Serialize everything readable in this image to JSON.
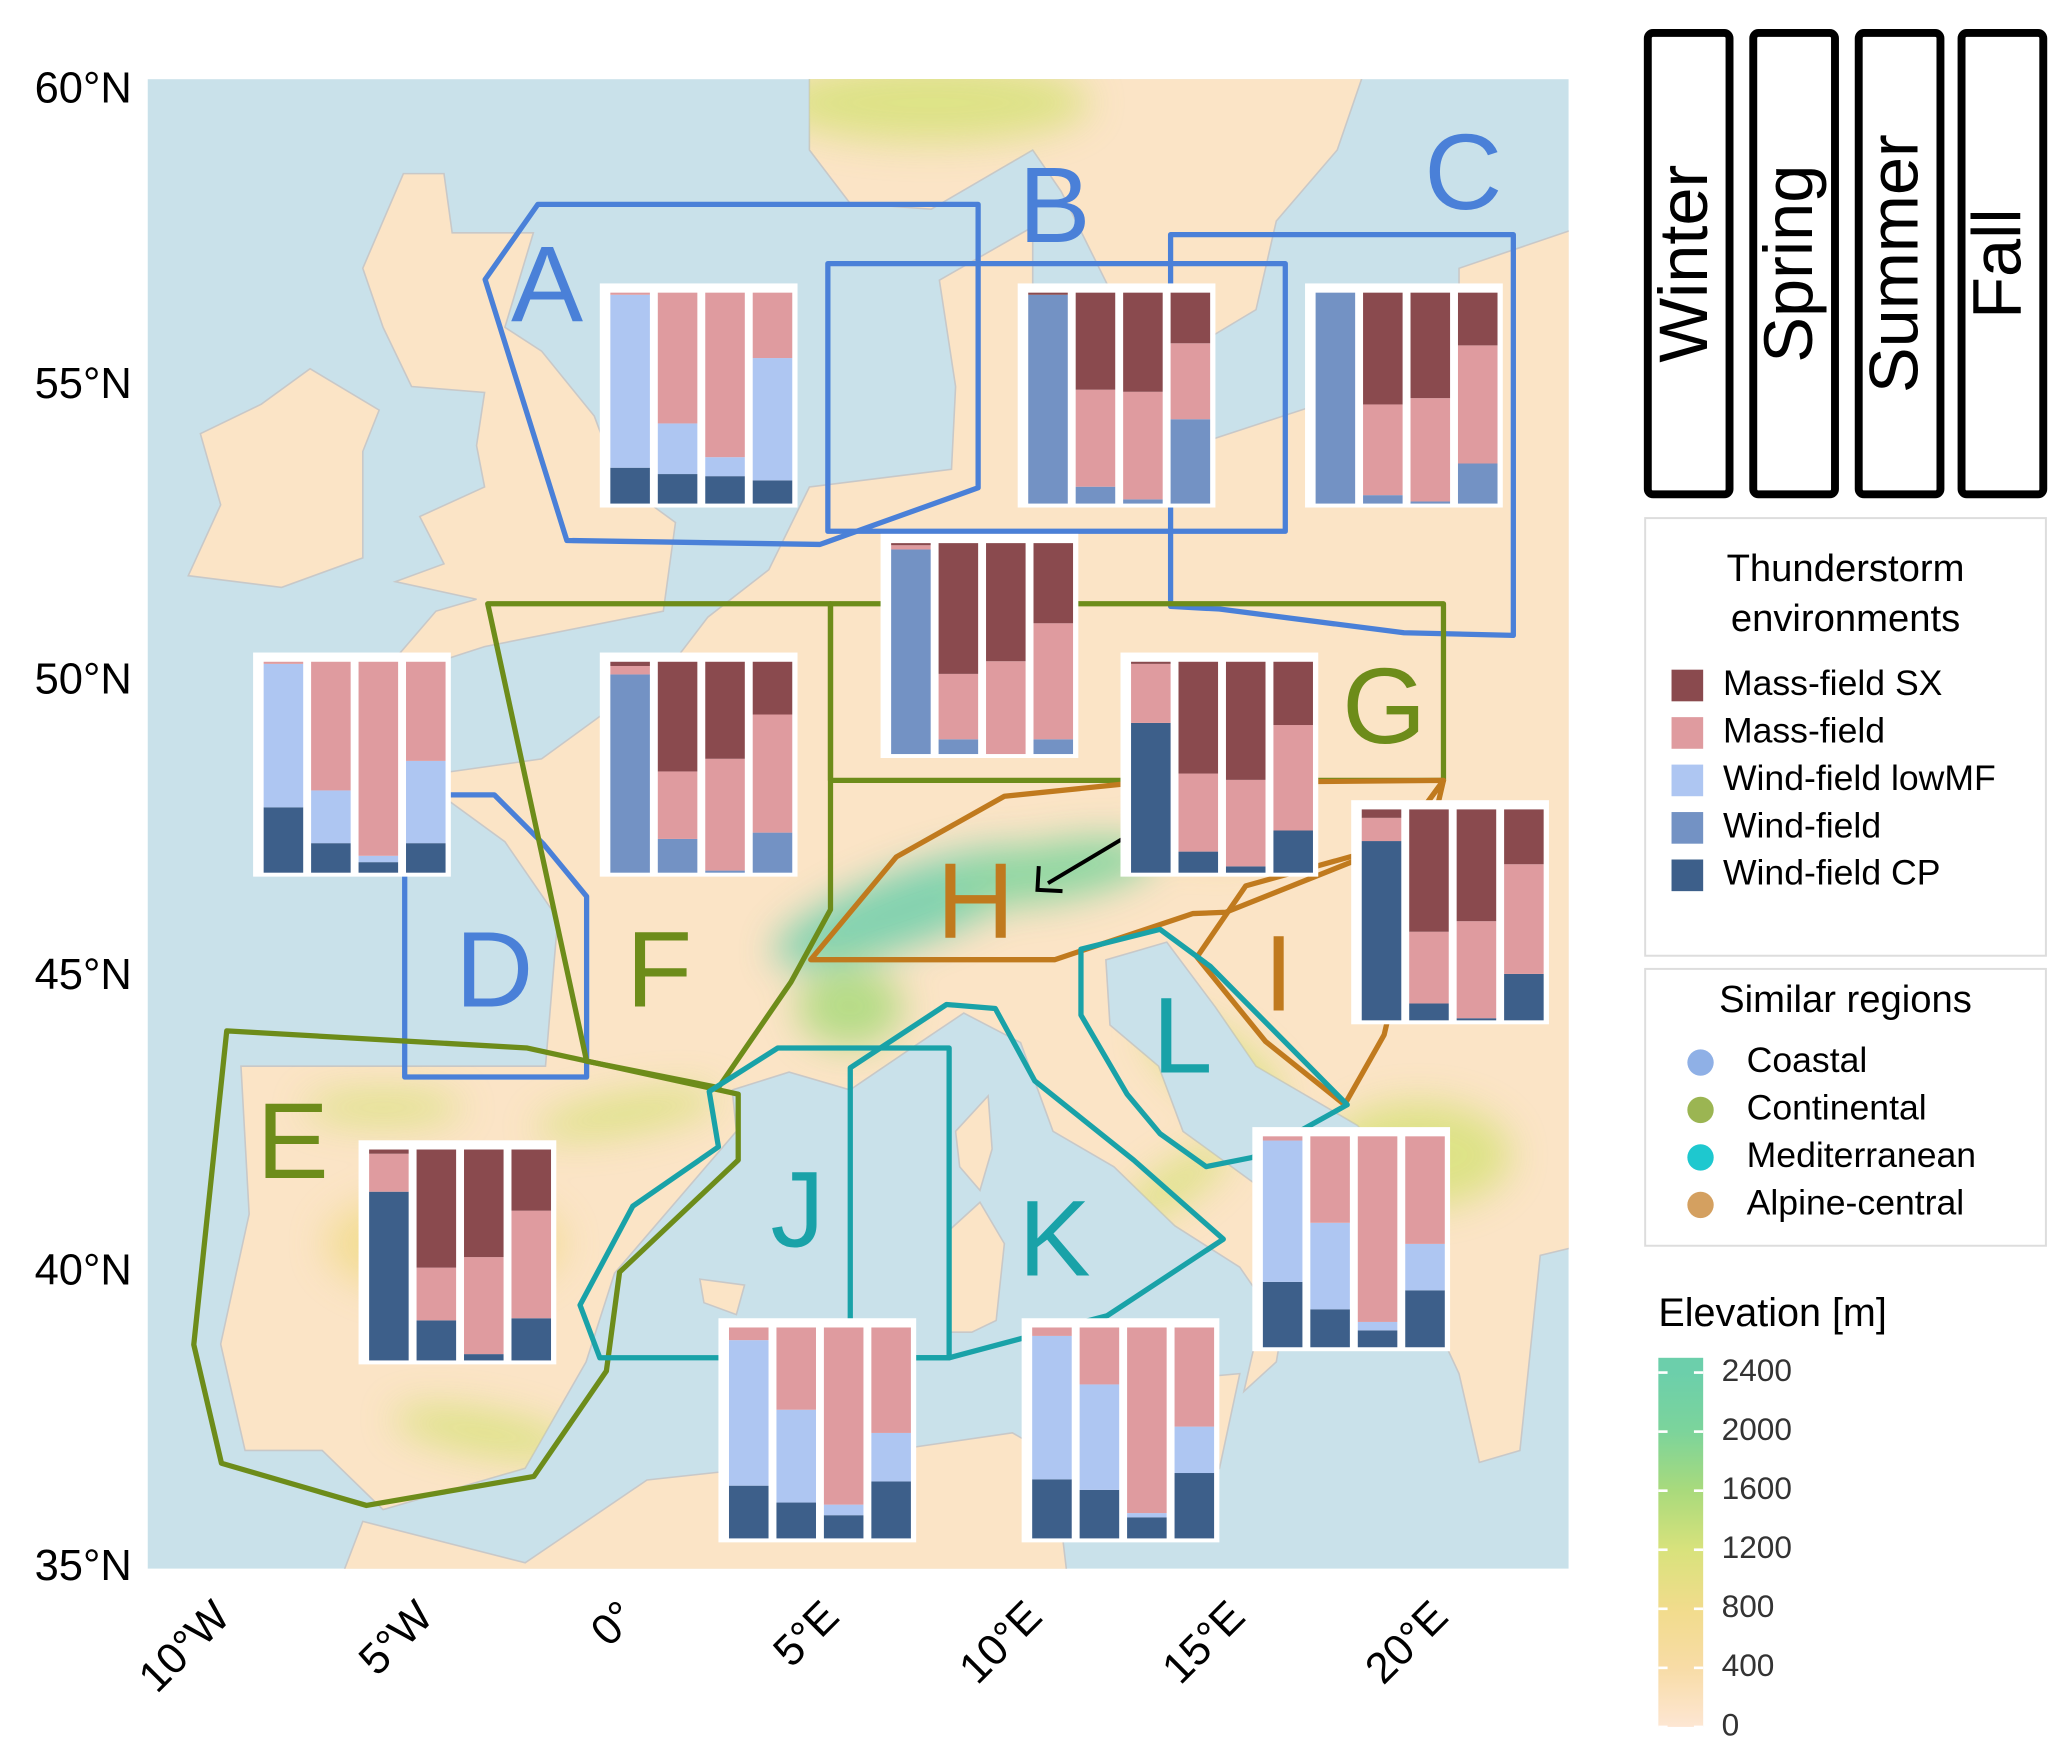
{
  "map": {
    "xlim": [
      -11.3,
      23.7
    ],
    "ylim": [
      35,
      60.2
    ],
    "xticks": [
      {
        "value": -10,
        "label": "10°W"
      },
      {
        "value": -5,
        "label": "5°W"
      },
      {
        "value": 0,
        "label": "0°"
      },
      {
        "value": 5,
        "label": "5°E"
      },
      {
        "value": 10,
        "label": "10°E"
      },
      {
        "value": 15,
        "label": "15°E"
      },
      {
        "value": 20,
        "label": "20°E"
      }
    ],
    "yticks": [
      {
        "value": 60,
        "label": "60°N"
      },
      {
        "value": 55,
        "label": "55°N"
      },
      {
        "value": 50,
        "label": "50°N"
      },
      {
        "value": 45,
        "label": "45°N"
      },
      {
        "value": 40,
        "label": "40°N"
      },
      {
        "value": 35,
        "label": "35°N"
      }
    ],
    "sea_color": "#c9e1ea",
    "land_color": "#fbe4c6"
  },
  "seasons": [
    "Winter",
    "Spring",
    "Summer",
    "Fall"
  ],
  "environments": {
    "title": [
      "Thunderstorm",
      "environments"
    ],
    "items": [
      {
        "name": "Mass-field SX",
        "color": "#8a4a4e"
      },
      {
        "name": "Mass-field",
        "color": "#df9b9f"
      },
      {
        "name": "Wind-field lowMF",
        "color": "#aec6f2"
      },
      {
        "name": "Wind-field",
        "color": "#7392c4"
      },
      {
        "name": "Wind-field CP",
        "color": "#3d5f8a"
      }
    ]
  },
  "similar_regions": {
    "title": "Similar regions",
    "items": [
      {
        "name": "Coastal",
        "color": "#8fb0e6",
        "line_color": "#4a80d8"
      },
      {
        "name": "Continental",
        "color": "#9bb552",
        "line_color": "#6d8c1a"
      },
      {
        "name": "Mediterranean",
        "color": "#1ec8cf",
        "line_color": "#19a2a8"
      },
      {
        "name": "Alpine-central",
        "color": "#d4a060",
        "line_color": "#c07a1e"
      }
    ]
  },
  "elevation": {
    "title": "Elevation [m]",
    "lim": [
      0,
      2500
    ],
    "ticks": [
      0,
      400,
      800,
      1200,
      1600,
      2000,
      2400
    ],
    "colors": [
      "#fde6d3",
      "#f8dca6",
      "#f1dc8c",
      "#d8e27c",
      "#a9da7c",
      "#7cd49b",
      "#6ccfab"
    ]
  },
  "regions": [
    {
      "label": "A",
      "group": "Coastal",
      "bars": [
        [
          0,
          1,
          82,
          0,
          17
        ],
        [
          0,
          62,
          24,
          0,
          14
        ],
        [
          0,
          78,
          9,
          0,
          13
        ],
        [
          0,
          31,
          58,
          0,
          11
        ]
      ]
    },
    {
      "label": "B",
      "group": "Coastal",
      "bars": [
        [
          1,
          0,
          0,
          99,
          0
        ],
        [
          46,
          46,
          0,
          8,
          0
        ],
        [
          47,
          51,
          0,
          2,
          0
        ],
        [
          24,
          36,
          0,
          40,
          0
        ]
      ]
    },
    {
      "label": "C",
      "group": "Coastal",
      "bars": [
        [
          0,
          0,
          0,
          100,
          0
        ],
        [
          53,
          43,
          0,
          4,
          0
        ],
        [
          50,
          49,
          0,
          1,
          0
        ],
        [
          25,
          56,
          0,
          19,
          0
        ]
      ]
    },
    {
      "label": "D",
      "group": "Coastal",
      "bars": [
        [
          0,
          1,
          68,
          0,
          31
        ],
        [
          0,
          61,
          25,
          0,
          14
        ],
        [
          0,
          92,
          3,
          0,
          5
        ],
        [
          0,
          47,
          39,
          0,
          14
        ]
      ]
    },
    {
      "label": "E",
      "group": "Continental",
      "bars": [
        [
          2,
          18,
          0,
          0,
          80
        ],
        [
          56,
          25,
          0,
          0,
          19
        ],
        [
          51,
          46,
          0,
          0,
          3
        ],
        [
          29,
          51,
          0,
          0,
          20
        ]
      ]
    },
    {
      "label": "F",
      "group": "Continental",
      "bars": [
        [
          2,
          4,
          0,
          94,
          0
        ],
        [
          52,
          32,
          0,
          16,
          0
        ],
        [
          46,
          53,
          0,
          1,
          0
        ],
        [
          25,
          56,
          0,
          19,
          0
        ]
      ]
    },
    {
      "label": "G",
      "group": "Continental",
      "bars": [
        [
          1,
          2,
          0,
          97,
          0
        ],
        [
          62,
          31,
          0,
          7,
          0
        ],
        [
          56,
          44,
          0,
          0,
          0
        ],
        [
          38,
          55,
          0,
          7,
          0
        ]
      ]
    },
    {
      "label": "H",
      "group": "Alpine-central",
      "bars": [
        [
          1,
          28,
          0,
          0,
          71
        ],
        [
          53,
          37,
          0,
          0,
          10
        ],
        [
          56,
          41,
          0,
          0,
          3
        ],
        [
          30,
          50,
          0,
          0,
          20
        ]
      ]
    },
    {
      "label": "I",
      "group": "Alpine-central",
      "bars": [
        [
          4,
          11,
          0,
          0,
          85
        ],
        [
          58,
          34,
          0,
          0,
          8
        ],
        [
          53,
          46,
          0,
          0,
          1
        ],
        [
          26,
          52,
          0,
          0,
          22
        ]
      ]
    },
    {
      "label": "J",
      "group": "Mediterranean",
      "bars": [
        [
          0,
          6,
          69,
          0,
          25
        ],
        [
          0,
          39,
          44,
          0,
          17
        ],
        [
          0,
          84,
          5,
          0,
          11
        ],
        [
          0,
          50,
          23,
          0,
          27
        ]
      ]
    },
    {
      "label": "K",
      "group": "Mediterranean",
      "bars": [
        [
          0,
          4,
          68,
          0,
          28
        ],
        [
          0,
          27,
          50,
          0,
          23
        ],
        [
          0,
          88,
          2,
          0,
          10
        ],
        [
          0,
          47,
          22,
          0,
          31
        ]
      ]
    },
    {
      "label": "L",
      "group": "Mediterranean",
      "bars": [
        [
          0,
          2,
          67,
          0,
          31
        ],
        [
          0,
          41,
          41,
          0,
          18
        ],
        [
          0,
          88,
          4,
          0,
          8
        ],
        [
          0,
          51,
          22,
          0,
          27
        ]
      ]
    }
  ]
}
